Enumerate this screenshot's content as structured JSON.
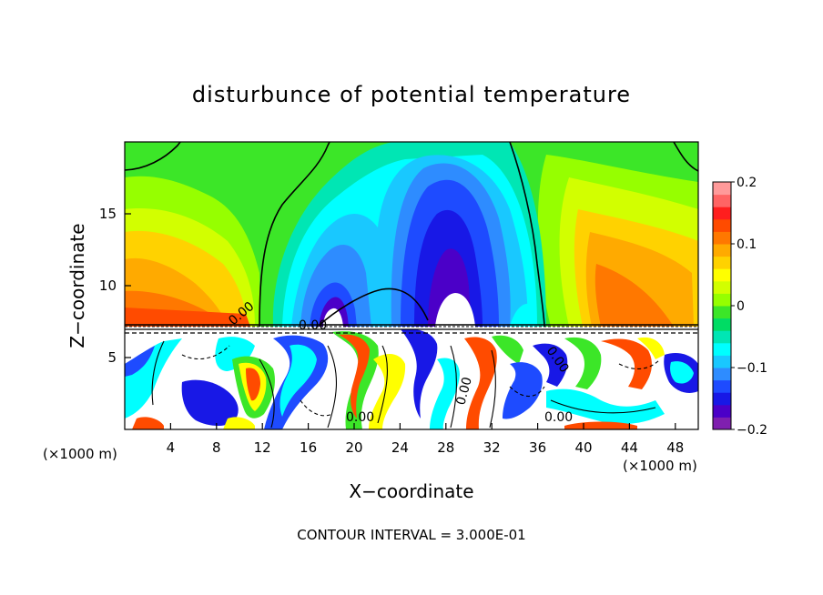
{
  "chart_data": {
    "type": "heatmap",
    "title": "disturbunce of potential temperature",
    "xlabel": "X−coordinate",
    "ylabel": "Z−coordinate",
    "x_unit_left": "(×1000 m)",
    "x_unit_right": "(×1000 m)",
    "xlim": [
      0,
      50
    ],
    "ylim": [
      0,
      20
    ],
    "x_ticks": [
      4,
      8,
      12,
      16,
      20,
      24,
      28,
      32,
      36,
      40,
      44,
      48
    ],
    "y_ticks": [
      5,
      10,
      15
    ],
    "colorbar": {
      "range": [
        -0.2,
        0.2
      ],
      "tick_values": [
        -0.2,
        -0.1,
        0,
        0.1,
        0.2
      ],
      "tick_labels": [
        "−0.2",
        "−0.1",
        "0",
        "0.1",
        "0.2"
      ],
      "colors": [
        "#7f1faf",
        "#4b00c8",
        "#1818e6",
        "#1e4bff",
        "#2e8cff",
        "#19c8ff",
        "#00ffff",
        "#00e6b4",
        "#00dc64",
        "#3ce628",
        "#96ff00",
        "#d2ff00",
        "#ffff00",
        "#ffd200",
        "#ffaa00",
        "#ff7800",
        "#ff4b00",
        "#ff1e1e",
        "#ff6464",
        "#ff9a9a"
      ]
    },
    "contour_labels": [
      "0.00",
      "0.00",
      "0.00",
      "0.00",
      "0.00",
      "0.00"
    ],
    "footer": "CONTOUR INTERVAL = 3.000E-01"
  }
}
